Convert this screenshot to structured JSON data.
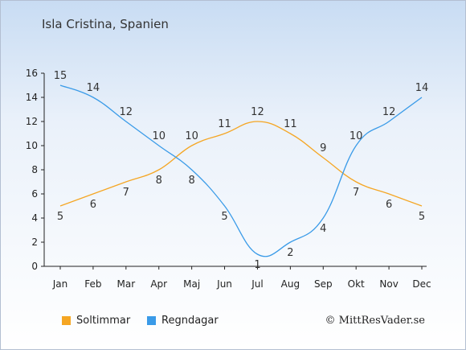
{
  "page": {
    "title": "Isla Cristina, Spanien",
    "copyright": "© MittResVader.se"
  },
  "chart_data": {
    "type": "line",
    "categories": [
      "Jan",
      "Feb",
      "Mar",
      "Apr",
      "Maj",
      "Jun",
      "Jul",
      "Aug",
      "Sep",
      "Okt",
      "Nov",
      "Dec"
    ],
    "ylim": [
      0,
      16
    ],
    "yticks": [
      0,
      2,
      4,
      6,
      8,
      10,
      12,
      14,
      16
    ],
    "grid": false,
    "legend_position": "bottom-left",
    "series": [
      {
        "name": "Soltimmar",
        "color": "#f5a623",
        "values": [
          5,
          6,
          7,
          8,
          10,
          11,
          12,
          11,
          9,
          7,
          6,
          5
        ]
      },
      {
        "name": "Regndagar",
        "color": "#3a9be8",
        "values": [
          15,
          14,
          12,
          10,
          8,
          5,
          1,
          2,
          4,
          10,
          12,
          14
        ]
      }
    ]
  }
}
